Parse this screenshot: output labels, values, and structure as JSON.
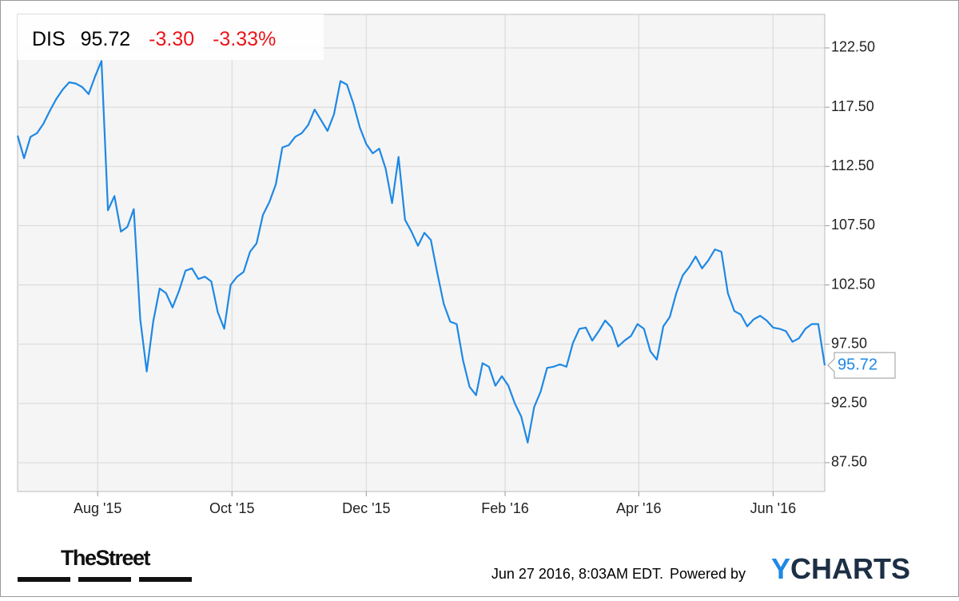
{
  "header": {
    "ticker": "DIS",
    "price": "95.72",
    "change": "-3.30",
    "change_pct": "-3.33%"
  },
  "chart_data": {
    "type": "line",
    "series": [
      {
        "name": "DIS",
        "color": "#1e88e5",
        "values": [
          115.1,
          113.2,
          115.0,
          115.3,
          116.1,
          117.2,
          118.2,
          119.0,
          119.6,
          119.5,
          119.2,
          118.6,
          120.1,
          121.4,
          108.8,
          110.0,
          107.0,
          107.4,
          108.9,
          99.6,
          95.2,
          99.4,
          102.2,
          101.8,
          100.6,
          102.0,
          103.7,
          103.9,
          103.0,
          103.2,
          102.8,
          100.2,
          98.8,
          102.5,
          103.2,
          103.6,
          105.3,
          106.0,
          108.4,
          109.5,
          111.0,
          114.1,
          114.3,
          115.0,
          115.3,
          116.0,
          117.3,
          116.4,
          115.5,
          116.9,
          119.7,
          119.4,
          117.8,
          115.8,
          114.4,
          113.6,
          114.0,
          112.3,
          109.4,
          113.3,
          108.0,
          107.0,
          105.8,
          106.9,
          106.3,
          103.5,
          100.9,
          99.4,
          99.2,
          96.1,
          93.9,
          93.2,
          95.9,
          95.6,
          94.0,
          94.8,
          94.0,
          92.5,
          91.4,
          89.2,
          92.2,
          93.5,
          95.5,
          95.6,
          95.8,
          95.6,
          97.6,
          98.8,
          98.9,
          97.8,
          98.6,
          99.5,
          98.9,
          97.3,
          97.8,
          98.2,
          99.2,
          98.8,
          96.9,
          96.2,
          99.0,
          99.8,
          101.8,
          103.3,
          104.0,
          104.9,
          103.9,
          104.6,
          105.5,
          105.3,
          101.8,
          100.3,
          100.0,
          99.0,
          99.6,
          99.9,
          99.5,
          98.9,
          98.8,
          98.6,
          97.7,
          98.0,
          98.8,
          99.2,
          99.2,
          95.72
        ]
      }
    ],
    "xlim": [
      0,
      125
    ],
    "xticks": [
      {
        "value": 12.4,
        "label": "Aug '15"
      },
      {
        "value": 33.2,
        "label": "Oct '15"
      },
      {
        "value": 54,
        "label": "Dec '15"
      },
      {
        "value": 75.5,
        "label": "Feb '16"
      },
      {
        "value": 96.2,
        "label": "Apr '16"
      },
      {
        "value": 117,
        "label": "Jun '16"
      }
    ],
    "ylim": [
      85.07,
      125.33
    ],
    "yticks": [
      {
        "value": 87.5,
        "label": "87.50"
      },
      {
        "value": 92.5,
        "label": "92.50"
      },
      {
        "value": 97.5,
        "label": "97.50"
      },
      {
        "value": 102.5,
        "label": "102.50"
      },
      {
        "value": 107.5,
        "label": "107.50"
      },
      {
        "value": 112.5,
        "label": "112.50"
      },
      {
        "value": 117.5,
        "label": "117.50"
      },
      {
        "value": 122.5,
        "label": "122.50"
      }
    ],
    "grid": true
  },
  "footer": {
    "source": "TheStreet",
    "timestamp": "Jun 27 2016, 8:03AM EDT.",
    "powered": "Powered by",
    "brand": [
      "Y",
      "CHARTS"
    ]
  }
}
